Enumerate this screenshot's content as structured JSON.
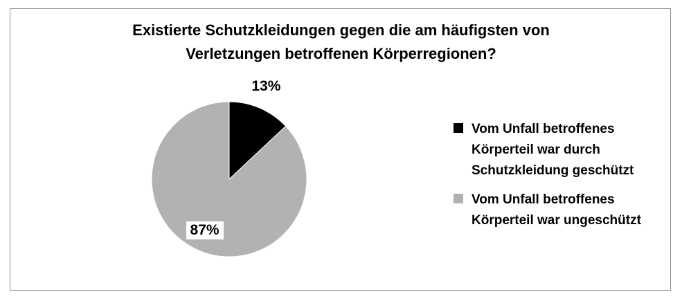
{
  "chart_data": {
    "type": "pie",
    "title": [
      "Existierte Schutzkleidungen gegen die am häufigsten von",
      "Verletzungen betroffenen Körperregionen?"
    ],
    "slices": [
      {
        "label": "Vom Unfall betroffenes Körperteil war durch Schutzkleidung geschützt",
        "legend_lines": [
          "Vom Unfall betroffenes",
          "Körperteil war durch",
          "Schutzkleidung geschützt"
        ],
        "value": 13,
        "data_label": "13%",
        "color": "#000000"
      },
      {
        "label": "Vom Unfall betroffenes Körperteil war ungeschützt",
        "legend_lines": [
          "Vom Unfall betroffenes",
          "Körperteil war ungeschützt"
        ],
        "value": 87,
        "data_label": "87%",
        "color": "#b2b2b2"
      }
    ],
    "start_angle_deg": 0,
    "direction": "clockwise",
    "legend_position": "right"
  }
}
